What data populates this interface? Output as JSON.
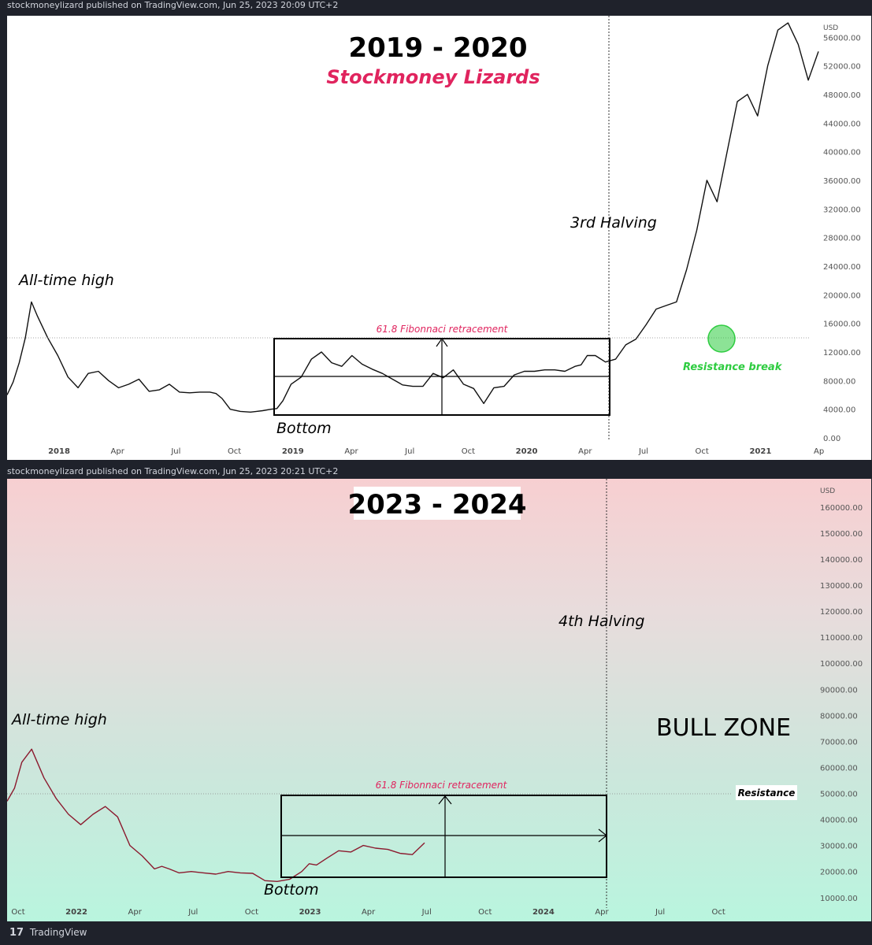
{
  "top": {
    "publisher": "stockmoneylizard published on TradingView.com, Jun 25, 2023 20:09 UTC+2",
    "title": "2019 - 2020",
    "subtitle": "Stockmoney Lizards",
    "ath_label": "All-time high",
    "bottom_label": "Bottom",
    "halving_label": "3rd Halving",
    "fib_label": "61.8 Fibonnaci retracement",
    "resistance_break_label": "Resistance break",
    "currency": "USD"
  },
  "bottom": {
    "publisher": "stockmoneylizard published on TradingView.com, Jun 25, 2023 20:21 UTC+2",
    "title": "2023 - 2024",
    "ath_label": "All-time high",
    "bottom_label": "Bottom",
    "halving_label": "4th Halving",
    "fib_label": "61.8 Fibonnaci retracement",
    "resistance_label": "Resistance",
    "bull_zone_label": "BULL ZONE",
    "currency": "USD"
  },
  "footer": {
    "brand": "TradingView",
    "logo": "17"
  },
  "colors": {
    "accent": "#e0245e",
    "green": "#2ecc40",
    "line_top": "#111111",
    "line_bottom": "#8b1a2e"
  },
  "chart_data": [
    {
      "type": "line",
      "name": "top",
      "currency": "USD",
      "y_ticks": [
        "0.00",
        "4000.00",
        "8000.00",
        "12000.00",
        "16000.00",
        "20000.00",
        "24000.00",
        "28000.00",
        "32000.00",
        "36000.00",
        "40000.00",
        "44000.00",
        "48000.00",
        "52000.00",
        "56000.00"
      ],
      "x_ticks": [
        "2018",
        "Apr",
        "Jul",
        "Oct",
        "2019",
        "Apr",
        "Jul",
        "Oct",
        "2020",
        "Apr",
        "Jul",
        "Oct",
        "2021",
        "Ap"
      ],
      "ylim": [
        0,
        59000
      ],
      "x": [
        0,
        0.3,
        0.6,
        0.9,
        1.2,
        1.5,
        2,
        2.5,
        3,
        3.5,
        4,
        4.5,
        5,
        5.5,
        6,
        6.5,
        7,
        7.5,
        8,
        8.5,
        9,
        9.5,
        10,
        10.3,
        10.6,
        11,
        11.5,
        12,
        12.3,
        12.6,
        13,
        13.3,
        13.6,
        14,
        14.5,
        15,
        15.5,
        16,
        16.5,
        17,
        17.5,
        18,
        18.5,
        19,
        19.5,
        20,
        20.5,
        21,
        21.5,
        22,
        22.5,
        23,
        23.5,
        24,
        24.5,
        25,
        25.5,
        26,
        26.5,
        27,
        27.5,
        28,
        28.3,
        28.6,
        29,
        29.5,
        30,
        30.5,
        31,
        31.5,
        32,
        32.5,
        33,
        33.5,
        34,
        34.5,
        35,
        35.5,
        36,
        36.5,
        37,
        37.5,
        38,
        38.5,
        39,
        39.5,
        40
      ],
      "values": [
        6000,
        7800,
        10500,
        14000,
        19000,
        17000,
        14000,
        11500,
        8500,
        7000,
        9000,
        9300,
        8000,
        7000,
        7500,
        8200,
        6500,
        6700,
        7500,
        6400,
        6300,
        6400,
        6400,
        6200,
        5500,
        4000,
        3700,
        3600,
        3700,
        3800,
        4000,
        4100,
        5200,
        7500,
        8500,
        11000,
        12000,
        10500,
        10000,
        11500,
        10300,
        9600,
        9000,
        8200,
        7400,
        7200,
        7200,
        9000,
        8400,
        9500,
        7500,
        6900,
        4800,
        7000,
        7200,
        8800,
        9300,
        9300,
        9500,
        9500,
        9300,
        10000,
        10200,
        11500,
        11500,
        10600,
        11000,
        13000,
        13800,
        15800,
        18000,
        18500,
        19000,
        23500,
        29000,
        36000,
        33000,
        40000,
        47000,
        48000,
        45000,
        52000,
        57000,
        58000,
        55000,
        50000,
        54000
      ]
    },
    {
      "type": "line",
      "name": "bottom",
      "currency": "USD",
      "y_ticks": [
        "10000.00",
        "20000.00",
        "30000.00",
        "40000.00",
        "50000.00",
        "60000.00",
        "70000.00",
        "80000.00",
        "90000.00",
        "100000.00",
        "110000.00",
        "120000.00",
        "130000.00",
        "140000.00",
        "150000.00",
        "160000.00"
      ],
      "x_ticks": [
        "Oct",
        "2022",
        "Apr",
        "Jul",
        "Oct",
        "2023",
        "Apr",
        "Jul",
        "Oct",
        "2024",
        "Apr",
        "Jul",
        "Oct"
      ],
      "ylim": [
        6000,
        166000
      ],
      "x": [
        0,
        0.3,
        0.6,
        1,
        1.5,
        2,
        2.5,
        3,
        3.5,
        4,
        4.5,
        5,
        5.5,
        6,
        6.3,
        6.6,
        7,
        7.5,
        8,
        8.5,
        9,
        9.5,
        10,
        10.5,
        11,
        11.5,
        12,
        12.3,
        12.6,
        13,
        13.5,
        14,
        14.5,
        15,
        15.5,
        16,
        16.5,
        17
      ],
      "values": [
        47000,
        52000,
        62000,
        67000,
        56000,
        48000,
        42000,
        38000,
        42000,
        45000,
        41000,
        30000,
        26000,
        21000,
        22000,
        21000,
        19500,
        20000,
        19500,
        19000,
        20000,
        19500,
        19300,
        16500,
        16200,
        17000,
        20000,
        23000,
        22500,
        25000,
        28000,
        27500,
        30000,
        29000,
        28500,
        27000,
        26500,
        31000
      ]
    }
  ]
}
